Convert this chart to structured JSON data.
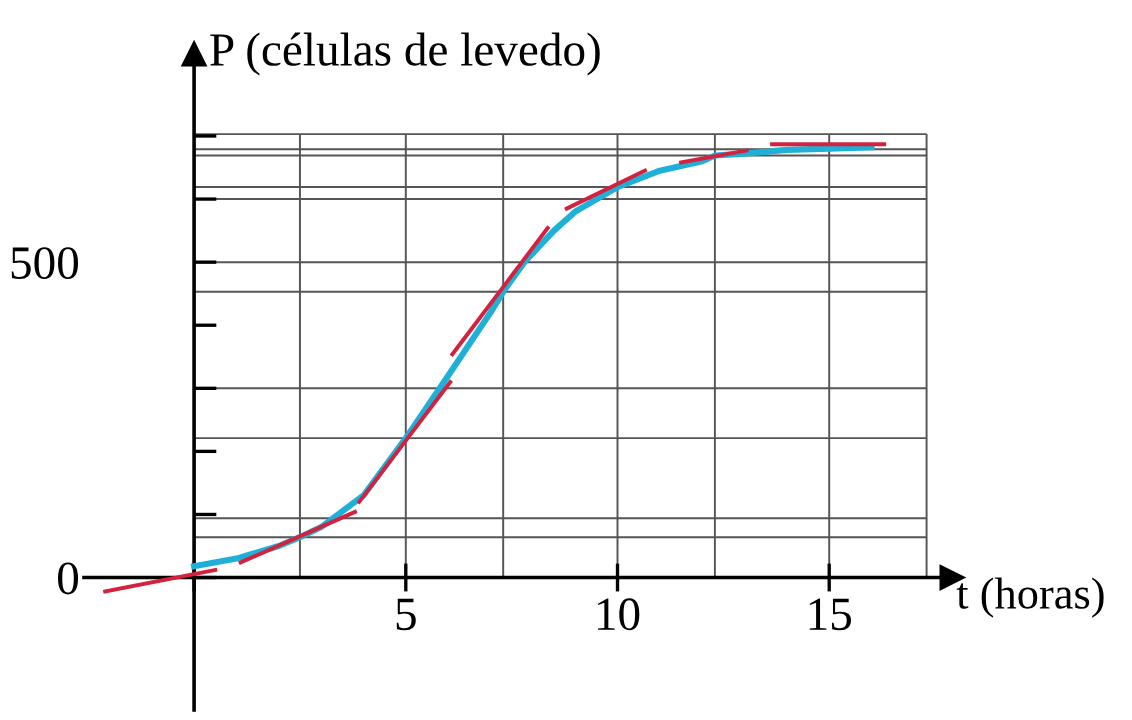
{
  "chart_data": {
    "type": "line",
    "xlabel": "t (horas)",
    "ylabel": "P (células de levedo)",
    "xlim": [
      -2.6,
      17.9
    ],
    "ylim": [
      -210,
      830
    ],
    "xticks": [
      {
        "value": 0,
        "label": null
      },
      5,
      10,
      15
    ],
    "yticks": [
      {
        "value": 0,
        "label": "0"
      },
      {
        "value": 100,
        "label": null
      },
      {
        "value": 200,
        "label": null
      },
      {
        "value": 300,
        "label": null
      },
      {
        "value": 400,
        "label": null
      },
      500,
      {
        "value": 600,
        "label": null
      },
      {
        "value": 700,
        "label": null
      }
    ],
    "grid": false,
    "legend": false,
    "marker": "none",
    "line_style": "solid",
    "ref_lines": [
      {
        "axis": "y",
        "value": 703,
        "color": "#555555"
      },
      {
        "axis": "y",
        "value": 679,
        "color": "#555555"
      },
      {
        "axis": "y",
        "value": 669,
        "color": "#555555"
      },
      {
        "axis": "y",
        "value": 619,
        "color": "#555555"
      },
      {
        "axis": "y",
        "value": 600,
        "color": "#555555"
      },
      {
        "axis": "y",
        "value": 500,
        "color": "#555555"
      },
      {
        "axis": "y",
        "value": 453,
        "color": "#555555"
      },
      {
        "axis": "y",
        "value": 300,
        "color": "#555555"
      },
      {
        "axis": "y",
        "value": 221,
        "color": "#555555"
      },
      {
        "axis": "y",
        "value": 94,
        "color": "#555555"
      },
      {
        "axis": "y",
        "value": 64,
        "color": "#555555"
      },
      {
        "axis": "x",
        "value": 2.5,
        "color": "#555555"
      },
      {
        "axis": "x",
        "value": 5,
        "color": "#555555"
      },
      {
        "axis": "x",
        "value": 7.3,
        "color": "#555555"
      },
      {
        "axis": "x",
        "value": 10,
        "color": "#555555"
      },
      {
        "axis": "x",
        "value": 12.3,
        "color": "#555555"
      },
      {
        "axis": "x",
        "value": 15,
        "color": "#555555"
      },
      {
        "axis": "x",
        "value": 17.3,
        "color": "#555555"
      }
    ],
    "series": [
      {
        "color": "#1fb0d8",
        "x": [
          0,
          1,
          2,
          2.5,
          3,
          4,
          5,
          6,
          7,
          7.3,
          7.8,
          8.5,
          9,
          10,
          11,
          12,
          12.3,
          13,
          14,
          15,
          16
        ],
        "values": [
          18,
          30,
          50,
          64,
          80,
          130,
          221,
          320,
          420,
          453,
          500,
          550,
          580,
          619,
          645,
          660,
          669,
          672,
          678,
          680,
          682
        ]
      },
      {
        "color": "#d4213d",
        "x": [
          -2.1,
          0.5
        ],
        "values": [
          -22,
          12
        ]
      },
      {
        "color": "#d4213d",
        "x": [
          1.1,
          3.8
        ],
        "values": [
          24,
          104
        ]
      },
      {
        "color": "#d4213d",
        "x": [
          3.9,
          6.05
        ],
        "values": [
          120,
          310
        ]
      },
      {
        "color": "#d4213d",
        "x": [
          6.1,
          8.35
        ],
        "values": [
          354,
          554
        ]
      },
      {
        "color": "#d4213d",
        "x": [
          8.8,
          10.65
        ],
        "values": [
          585,
          645
        ]
      },
      {
        "color": "#d4213d",
        "x": [
          11.5,
          13.05
        ],
        "values": [
          658,
          677
        ]
      },
      {
        "color": "#d4213d",
        "x": [
          13.65,
          16.3
        ],
        "values": [
          687,
          687
        ]
      }
    ]
  }
}
